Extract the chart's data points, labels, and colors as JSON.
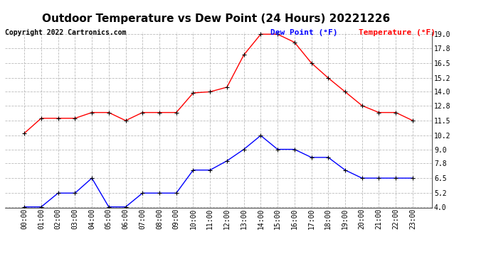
{
  "title": "Outdoor Temperature vs Dew Point (24 Hours) 20221226",
  "copyright": "Copyright 2022 Cartronics.com",
  "legend_dew": "Dew Point (°F)",
  "legend_temp": "Temperature (°F)",
  "hours": [
    "00:00",
    "01:00",
    "02:00",
    "03:00",
    "04:00",
    "05:00",
    "06:00",
    "07:00",
    "08:00",
    "09:00",
    "10:00",
    "11:00",
    "12:00",
    "13:00",
    "14:00",
    "15:00",
    "16:00",
    "17:00",
    "18:00",
    "19:00",
    "20:00",
    "21:00",
    "22:00",
    "23:00"
  ],
  "temperature": [
    10.4,
    11.7,
    11.7,
    11.7,
    12.2,
    12.2,
    11.5,
    12.2,
    12.2,
    12.2,
    13.9,
    14.0,
    14.4,
    17.2,
    19.0,
    19.0,
    18.3,
    16.5,
    15.2,
    14.0,
    12.8,
    12.2,
    12.2,
    11.5
  ],
  "dew_point": [
    4.0,
    4.0,
    5.2,
    5.2,
    6.5,
    4.0,
    4.0,
    5.2,
    5.2,
    5.2,
    7.2,
    7.2,
    8.0,
    9.0,
    10.2,
    9.0,
    9.0,
    8.3,
    8.3,
    7.2,
    6.5,
    6.5,
    6.5,
    6.5
  ],
  "ylim": [
    4.0,
    19.0
  ],
  "yticks": [
    4.0,
    5.2,
    6.5,
    7.8,
    9.0,
    10.2,
    11.5,
    12.8,
    14.0,
    15.2,
    16.5,
    17.8,
    19.0
  ],
  "bg_color": "#ffffff",
  "temp_color": "red",
  "dew_color": "blue",
  "marker_color": "black",
  "grid_color": "#aaaaaa",
  "title_fontsize": 11,
  "legend_fontsize": 8,
  "copyright_fontsize": 7,
  "tick_fontsize": 7
}
